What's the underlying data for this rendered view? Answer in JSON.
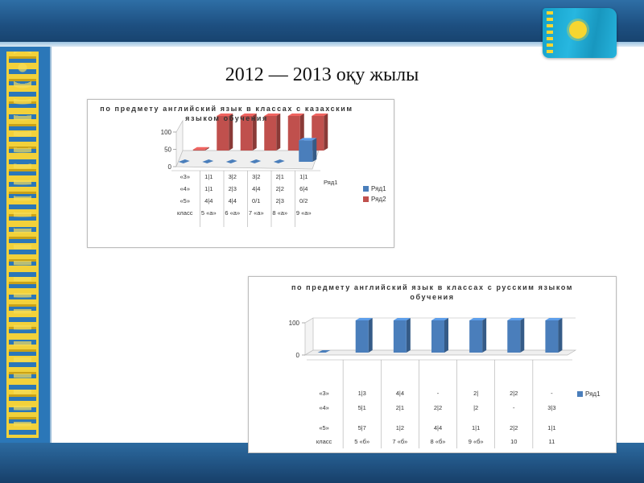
{
  "slide": {
    "title": "2012 — 2013 оқу жылы",
    "colors": {
      "series1": "#4a7ebb",
      "series2": "#c0504d",
      "header": "#1d4f80",
      "ornament": "#f2d13a"
    }
  },
  "chart_data": [
    {
      "type": "bar",
      "title": "по предмету английский язык в классах с казахским языком обучения",
      "ylim": [
        0,
        100
      ],
      "yticks": [
        "0",
        "50",
        "100"
      ],
      "categories": [
        "«3»\n«4»\n«5»\nкласс",
        "1|1\n1|1\n4|4\n5 «а»",
        "3|2\n2|3\n4|4\n6 «а»",
        "3|2\n4|4\n0/1\n7 «а»",
        "2|1\n2|2\n2|3\n8 «а»",
        "1|1\n6|4\n0/2\n9 «а»"
      ],
      "category_rows": [
        [
          "«3»",
          "«4»",
          "«5»",
          "класс"
        ],
        [
          "1|1",
          "1|1",
          "4|4",
          "5 «а»"
        ],
        [
          "3|2",
          "2|3",
          "4|4",
          "6 «а»"
        ],
        [
          "3|2",
          "4|4",
          "0/1",
          "7 «а»"
        ],
        [
          "2|1",
          "2|2",
          "2|3",
          "8 «а»"
        ],
        [
          "1|1",
          "6|4",
          "0/2",
          "9 «а»"
        ]
      ],
      "depth_label": "Ряд1",
      "series": [
        {
          "name": "Ряд1",
          "values": [
            0,
            0,
            0,
            0,
            0,
            62
          ]
        },
        {
          "name": "Ряд2",
          "values": [
            3,
            100,
            100,
            100,
            100,
            100
          ]
        }
      ],
      "legend": "right",
      "grid": false
    },
    {
      "type": "bar",
      "title": "по предмету английский язык в классах с русским языком обучения",
      "ylim": [
        0,
        100
      ],
      "yticks": [
        "0",
        "100"
      ],
      "category_rows": [
        [
          "«3»",
          "«4»",
          "«5»",
          "класс"
        ],
        [
          "1|3",
          "5|1",
          "5|7",
          "5 «б»"
        ],
        [
          "4|4",
          "2|1",
          "1|2",
          "7 «б»"
        ],
        [
          "-",
          "2|2",
          "4|4",
          "8 «б»"
        ],
        [
          "2|",
          "|2",
          "1|1",
          "9 «б»"
        ],
        [
          "2|2",
          "-",
          "2|2",
          "10"
        ],
        [
          "-",
          "3|3",
          "1|1",
          "11"
        ]
      ],
      "series": [
        {
          "name": "Ряд1",
          "values": [
            0,
            100,
            100,
            100,
            100,
            100,
            100
          ]
        }
      ],
      "legend": "right",
      "grid": false
    }
  ]
}
